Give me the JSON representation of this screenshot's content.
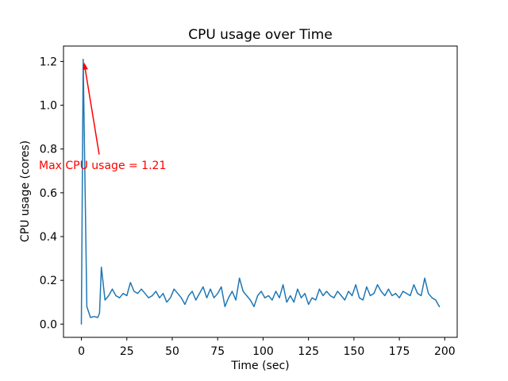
{
  "chart_data": {
    "type": "line",
    "title": "CPU usage over Time",
    "xlabel": "Time (sec)",
    "ylabel": "CPU usage (cores)",
    "x_tick_values": [
      0,
      25,
      50,
      75,
      100,
      125,
      150,
      175,
      200
    ],
    "x_tick_labels": [
      "0",
      "25",
      "50",
      "75",
      "100",
      "125",
      "150",
      "175",
      "200"
    ],
    "y_tick_values": [
      0.0,
      0.2,
      0.4,
      0.6,
      0.8,
      1.0,
      1.2
    ],
    "y_tick_labels": [
      "0.0",
      "0.2",
      "0.4",
      "0.6",
      "0.8",
      "1.0",
      "1.2"
    ],
    "xlim": [
      -9.85,
      206.85
    ],
    "ylim": [
      -0.0605,
      1.2705
    ],
    "grid": false,
    "legend": null,
    "background": "#ffffff",
    "line_color": "#1f77b4",
    "axis_color": "#000000",
    "max_value": 1.21,
    "series": [
      {
        "name": "CPU usage",
        "points": [
          [
            0,
            0.0
          ],
          [
            1,
            1.21
          ],
          [
            3,
            0.08
          ],
          [
            5,
            0.03
          ],
          [
            7,
            0.035
          ],
          [
            9,
            0.03
          ],
          [
            10,
            0.05
          ],
          [
            11,
            0.26
          ],
          [
            13,
            0.11
          ],
          [
            15,
            0.13
          ],
          [
            17,
            0.16
          ],
          [
            19,
            0.13
          ],
          [
            21,
            0.12
          ],
          [
            23,
            0.14
          ],
          [
            25,
            0.13
          ],
          [
            27,
            0.19
          ],
          [
            29,
            0.15
          ],
          [
            31,
            0.14
          ],
          [
            33,
            0.16
          ],
          [
            35,
            0.14
          ],
          [
            37,
            0.12
          ],
          [
            39,
            0.13
          ],
          [
            41,
            0.15
          ],
          [
            43,
            0.12
          ],
          [
            45,
            0.14
          ],
          [
            47,
            0.1
          ],
          [
            49,
            0.12
          ],
          [
            51,
            0.16
          ],
          [
            53,
            0.14
          ],
          [
            55,
            0.12
          ],
          [
            57,
            0.09
          ],
          [
            59,
            0.13
          ],
          [
            61,
            0.15
          ],
          [
            63,
            0.11
          ],
          [
            65,
            0.14
          ],
          [
            67,
            0.17
          ],
          [
            69,
            0.12
          ],
          [
            71,
            0.16
          ],
          [
            73,
            0.12
          ],
          [
            75,
            0.14
          ],
          [
            77,
            0.17
          ],
          [
            79,
            0.08
          ],
          [
            81,
            0.12
          ],
          [
            83,
            0.15
          ],
          [
            85,
            0.11
          ],
          [
            87,
            0.21
          ],
          [
            89,
            0.15
          ],
          [
            91,
            0.13
          ],
          [
            93,
            0.11
          ],
          [
            95,
            0.08
          ],
          [
            97,
            0.13
          ],
          [
            99,
            0.15
          ],
          [
            101,
            0.12
          ],
          [
            103,
            0.13
          ],
          [
            105,
            0.11
          ],
          [
            107,
            0.15
          ],
          [
            109,
            0.12
          ],
          [
            111,
            0.18
          ],
          [
            113,
            0.1
          ],
          [
            115,
            0.13
          ],
          [
            117,
            0.1
          ],
          [
            119,
            0.16
          ],
          [
            121,
            0.12
          ],
          [
            123,
            0.14
          ],
          [
            125,
            0.09
          ],
          [
            127,
            0.12
          ],
          [
            129,
            0.11
          ],
          [
            131,
            0.16
          ],
          [
            133,
            0.13
          ],
          [
            135,
            0.15
          ],
          [
            137,
            0.13
          ],
          [
            139,
            0.12
          ],
          [
            141,
            0.15
          ],
          [
            143,
            0.13
          ],
          [
            145,
            0.11
          ],
          [
            147,
            0.15
          ],
          [
            149,
            0.13
          ],
          [
            151,
            0.18
          ],
          [
            153,
            0.12
          ],
          [
            155,
            0.11
          ],
          [
            157,
            0.17
          ],
          [
            159,
            0.13
          ],
          [
            161,
            0.14
          ],
          [
            163,
            0.18
          ],
          [
            165,
            0.15
          ],
          [
            167,
            0.13
          ],
          [
            169,
            0.16
          ],
          [
            171,
            0.13
          ],
          [
            173,
            0.14
          ],
          [
            175,
            0.12
          ],
          [
            177,
            0.15
          ],
          [
            179,
            0.14
          ],
          [
            181,
            0.13
          ],
          [
            183,
            0.18
          ],
          [
            185,
            0.14
          ],
          [
            187,
            0.13
          ],
          [
            189,
            0.21
          ],
          [
            191,
            0.14
          ],
          [
            193,
            0.12
          ],
          [
            195,
            0.11
          ],
          [
            197,
            0.08
          ]
        ]
      }
    ],
    "annotation": {
      "text": "Max CPU usage = 1.21",
      "color": "#ff0000",
      "arrow_tail": [
        9.8,
        0.775
      ],
      "arrow_tip": [
        1.5,
        1.195
      ]
    }
  }
}
